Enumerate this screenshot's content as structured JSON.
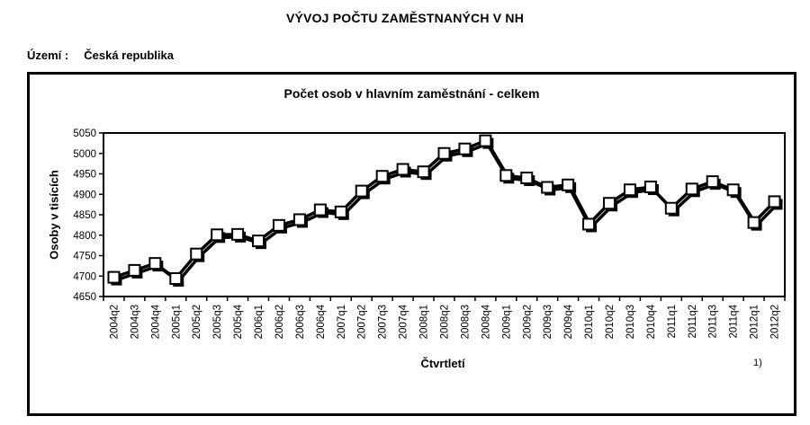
{
  "page": {
    "title": "VÝVOJ POČTU ZAMĚSTNANÝCH V NH",
    "region_label": "Území :",
    "region_value": "Česká republika"
  },
  "chart_data": {
    "type": "line",
    "title": "Počet osob v hlavním zaměstnání - celkem",
    "xlabel": "Čtvrtletí",
    "ylabel": "Osoby v tisících",
    "footnote": "1)",
    "ylim": [
      4650,
      5050
    ],
    "ytick_step": 50,
    "grid": false,
    "legend": "none",
    "line_color": "#000000",
    "marker_fill": "#ffffff",
    "marker_border": "#000000",
    "categories": [
      "2004q2",
      "2004q3",
      "2004q4",
      "2005q1",
      "2005q2",
      "2005q3",
      "2005q4",
      "2006q1",
      "2006q2",
      "2006q3",
      "2006q4",
      "2007q1",
      "2007q2",
      "2007q3",
      "2007q4",
      "2008q1",
      "2008q2",
      "2008q3",
      "2008q4",
      "2009q1",
      "2009q2",
      "2009q3",
      "2009q4",
      "2010q1",
      "2010q2",
      "2010q3",
      "2010q4",
      "2011q1",
      "2011q2",
      "2011q3",
      "2011q4",
      "2012q1",
      "2012q2"
    ],
    "values": [
      4697,
      4714,
      4731,
      4694,
      4754,
      4801,
      4802,
      4786,
      4824,
      4838,
      4862,
      4857,
      4908,
      4944,
      4961,
      4955,
      5000,
      5011,
      5031,
      4946,
      4940,
      4917,
      4923,
      4827,
      4878,
      4911,
      4918,
      4866,
      4913,
      4931,
      4911,
      4831,
      4882
    ]
  }
}
